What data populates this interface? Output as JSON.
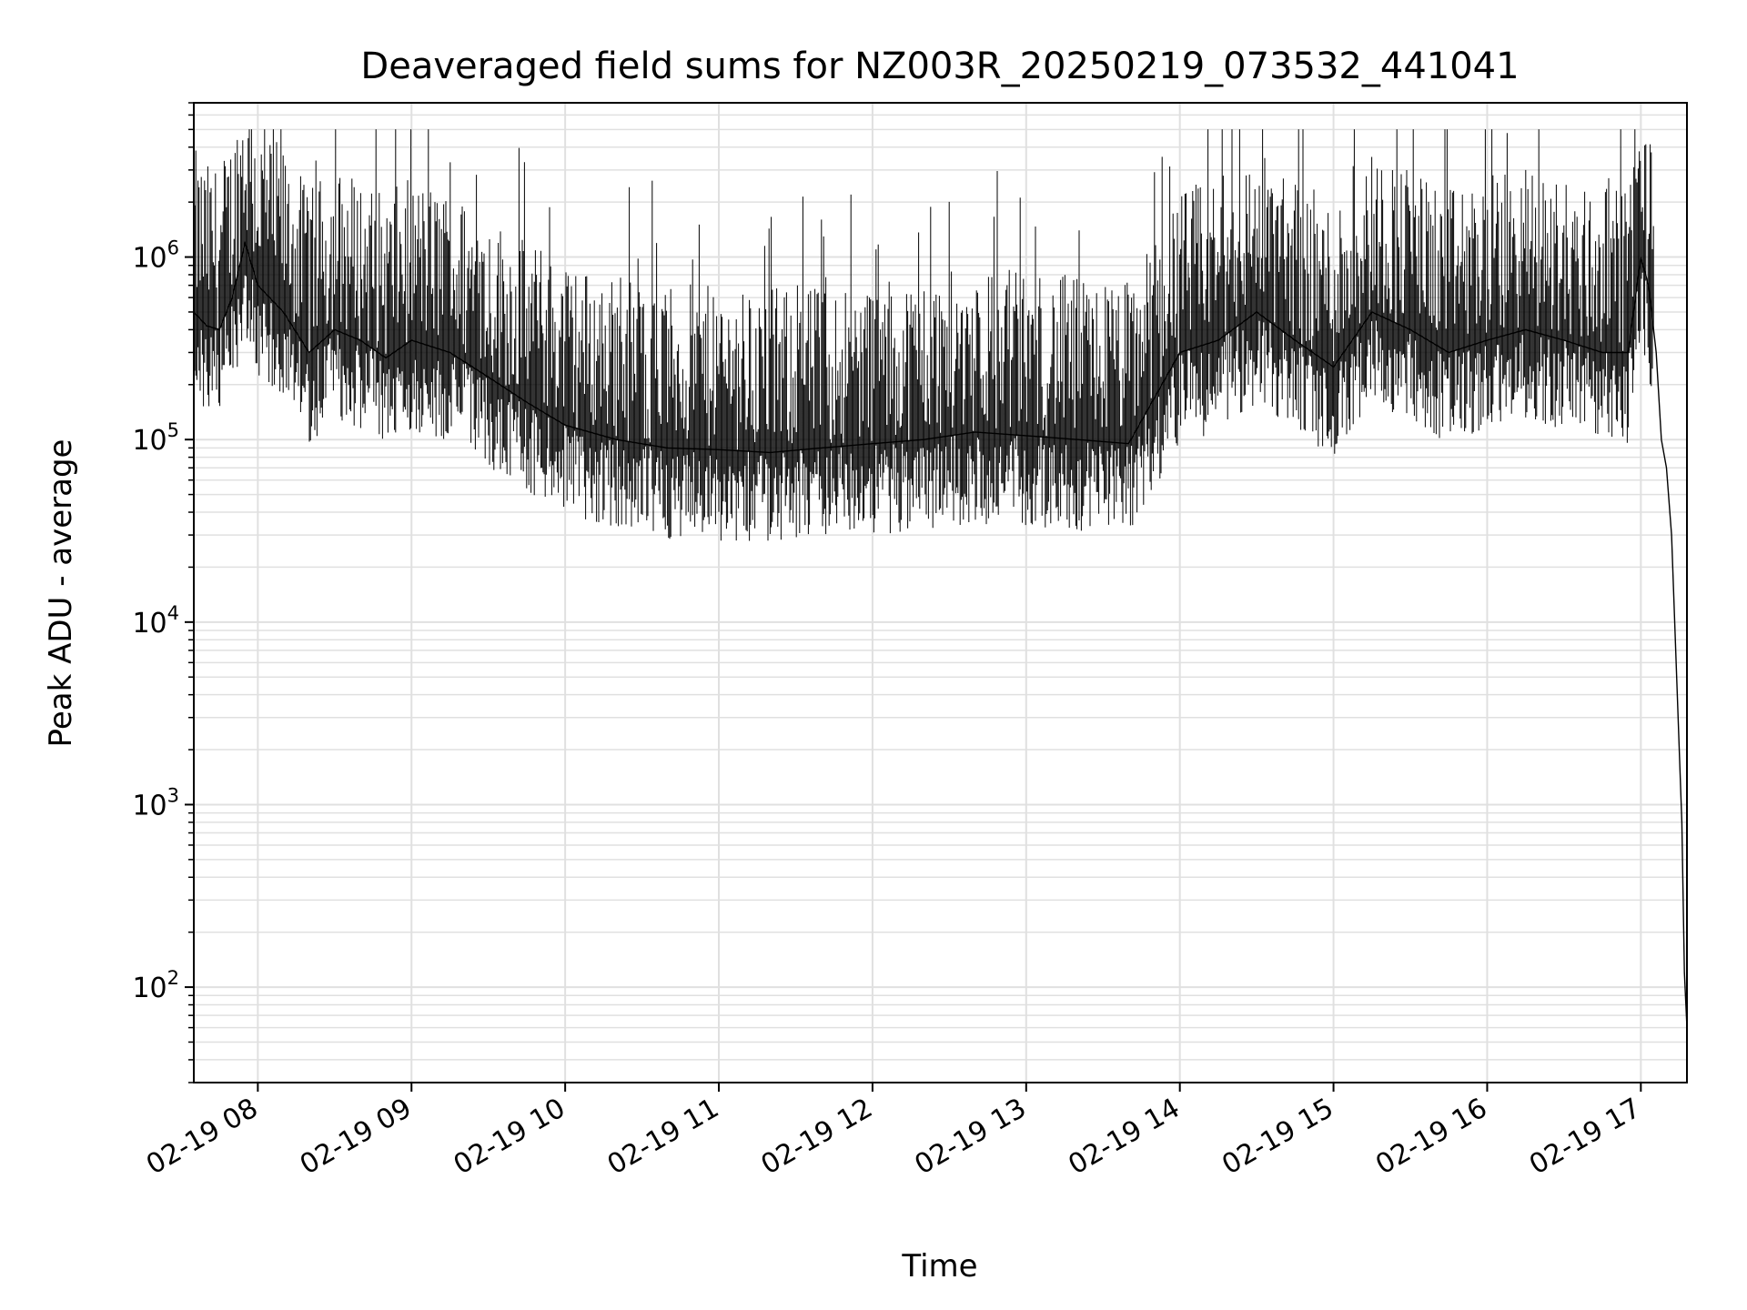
{
  "chart_data": {
    "type": "line",
    "title": "Deaveraged field sums for NZ003R_20250219_073532_441041",
    "xlabel": "Time",
    "ylabel": "Peak ADU - average",
    "yscale": "log",
    "xlim": [
      "2025-02-19 07:35",
      "2025-02-19 17:18"
    ],
    "ylim": [
      30,
      7000000
    ],
    "grid": true,
    "grid_minor": true,
    "line_color": "#000000",
    "grid_color": "#e0e0e0",
    "x_ticks": [
      {
        "value": "2025-02-19 08:00",
        "label": "02-19 08"
      },
      {
        "value": "2025-02-19 09:00",
        "label": "02-19 09"
      },
      {
        "value": "2025-02-19 10:00",
        "label": "02-19 10"
      },
      {
        "value": "2025-02-19 11:00",
        "label": "02-19 11"
      },
      {
        "value": "2025-02-19 12:00",
        "label": "02-19 12"
      },
      {
        "value": "2025-02-19 13:00",
        "label": "02-19 13"
      },
      {
        "value": "2025-02-19 14:00",
        "label": "02-19 14"
      },
      {
        "value": "2025-02-19 15:00",
        "label": "02-19 15"
      },
      {
        "value": "2025-02-19 16:00",
        "label": "02-19 16"
      },
      {
        "value": "2025-02-19 17:00",
        "label": "02-19 17"
      }
    ],
    "y_ticks": [
      {
        "value": 100,
        "base": "10",
        "exp": "2"
      },
      {
        "value": 1000,
        "base": "10",
        "exp": "3"
      },
      {
        "value": 10000,
        "base": "10",
        "exp": "4"
      },
      {
        "value": 100000,
        "base": "10",
        "exp": "5"
      },
      {
        "value": 1000000,
        "base": "10",
        "exp": "6"
      }
    ],
    "series": [
      {
        "x": [
          "2025-02-19 07:35",
          "2025-02-19 07:40",
          "2025-02-19 07:45",
          "2025-02-19 07:50",
          "2025-02-19 07:55",
          "2025-02-19 08:00",
          "2025-02-19 08:10",
          "2025-02-19 08:20",
          "2025-02-19 08:30",
          "2025-02-19 08:40",
          "2025-02-19 08:50",
          "2025-02-19 09:00",
          "2025-02-19 09:15",
          "2025-02-19 09:30",
          "2025-02-19 09:45",
          "2025-02-19 10:00",
          "2025-02-19 10:20",
          "2025-02-19 10:40",
          "2025-02-19 11:00",
          "2025-02-19 11:20",
          "2025-02-19 11:40",
          "2025-02-19 12:00",
          "2025-02-19 12:20",
          "2025-02-19 12:40",
          "2025-02-19 13:00",
          "2025-02-19 13:20",
          "2025-02-19 13:40",
          "2025-02-19 14:00",
          "2025-02-19 14:15",
          "2025-02-19 14:30",
          "2025-02-19 14:45",
          "2025-02-19 15:00",
          "2025-02-19 15:15",
          "2025-02-19 15:30",
          "2025-02-19 15:45",
          "2025-02-19 16:00",
          "2025-02-19 16:15",
          "2025-02-19 16:30",
          "2025-02-19 16:45",
          "2025-02-19 16:55",
          "2025-02-19 17:00",
          "2025-02-19 17:03",
          "2025-02-19 17:06",
          "2025-02-19 17:08",
          "2025-02-19 17:10",
          "2025-02-19 17:12",
          "2025-02-19 17:14",
          "2025-02-19 17:16",
          "2025-02-19 17:17",
          "2025-02-19 17:18"
        ],
        "y": [
          500000,
          420000,
          400000,
          600000,
          1200000,
          700000,
          500000,
          300000,
          400000,
          350000,
          280000,
          350000,
          300000,
          220000,
          160000,
          120000,
          100000,
          90000,
          88000,
          85000,
          90000,
          95000,
          100000,
          110000,
          105000,
          100000,
          95000,
          300000,
          350000,
          500000,
          350000,
          250000,
          500000,
          400000,
          300000,
          350000,
          400000,
          350000,
          300000,
          300000,
          1000000,
          700000,
          300000,
          100000,
          70000,
          30000,
          5000,
          800,
          120,
          60
        ]
      }
    ]
  }
}
